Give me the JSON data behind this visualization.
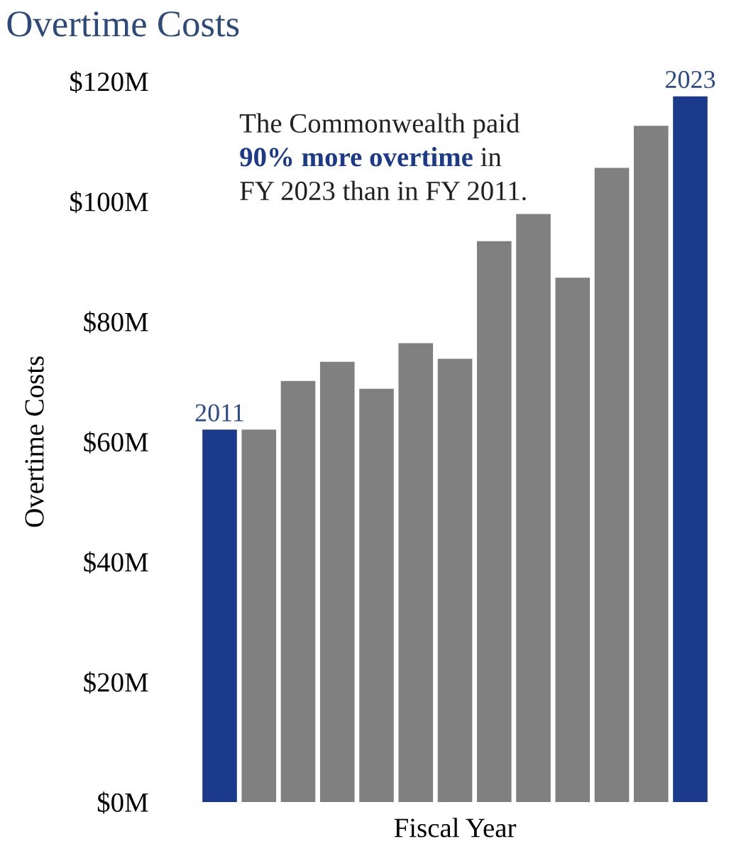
{
  "chart_data": {
    "type": "bar",
    "title": "Overtime Costs",
    "xlabel": "Fiscal Year",
    "ylabel": "Overtime Costs",
    "categories": [
      "2011",
      null,
      null,
      null,
      null,
      null,
      null,
      null,
      null,
      null,
      null,
      null,
      "2023"
    ],
    "values": [
      62.0,
      62.0,
      70.1,
      73.3,
      68.8,
      76.4,
      73.8,
      93.4,
      97.9,
      87.3,
      105.6,
      112.6,
      117.5
    ],
    "colors": [
      "#1b3a8c",
      "#808080",
      "#808080",
      "#808080",
      "#808080",
      "#808080",
      "#808080",
      "#808080",
      "#808080",
      "#808080",
      "#808080",
      "#808080",
      "#1b3a8c"
    ],
    "ylim": [
      0,
      120
    ],
    "yticks": [
      {
        "value": 0,
        "label": "$0M"
      },
      {
        "value": 20,
        "label": "$20M"
      },
      {
        "value": 40,
        "label": "$40M"
      },
      {
        "value": 60,
        "label": "$60M"
      },
      {
        "value": 80,
        "label": "$80M"
      },
      {
        "value": 100,
        "label": "$100M"
      },
      {
        "value": 120,
        "label": "$120M"
      }
    ],
    "annotations": [
      "The Commonwealth paid",
      "90% more overtime",
      " in",
      "FY 2023 than in FY 2011."
    ],
    "grid": false
  }
}
